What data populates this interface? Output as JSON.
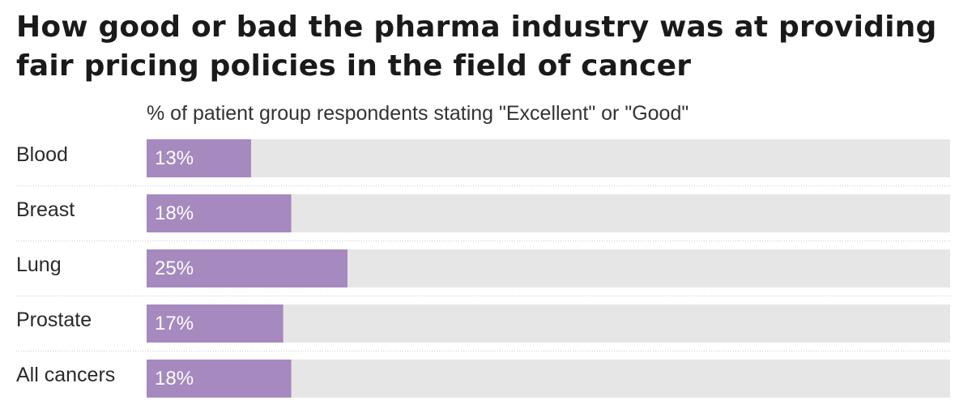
{
  "chart_data": {
    "type": "bar",
    "orientation": "horizontal",
    "title": "How good or bad the pharma industry was at providing fair pricing policies in the field of cancer",
    "subtitle": "% of patient group respondents stating \"Excellent\" or \"Good\"",
    "categories": [
      "Blood",
      "Breast",
      "Lung",
      "Prostate",
      "All cancers"
    ],
    "values": [
      13,
      18,
      25,
      17,
      18
    ],
    "value_labels": [
      "13%",
      "18%",
      "25%",
      "17%",
      "18%"
    ],
    "xlim": [
      0,
      100
    ],
    "bar_color": "#a689bf",
    "track_color": "#e6e6e6",
    "value_label_color": "#ffffff",
    "grid": false
  }
}
